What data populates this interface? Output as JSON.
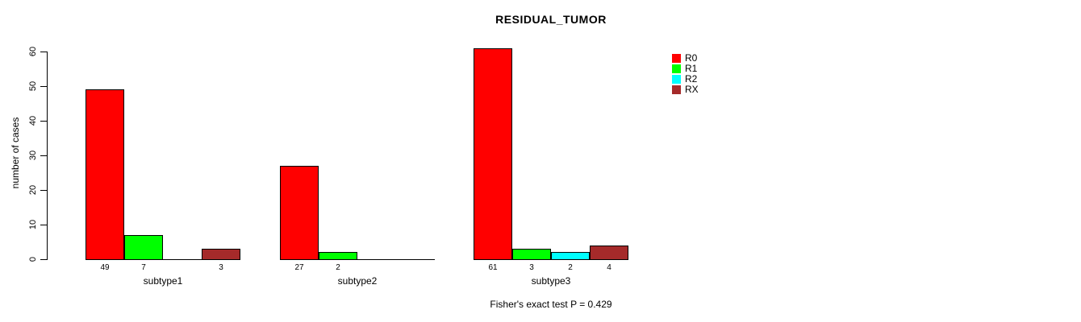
{
  "chart_data": {
    "type": "bar",
    "title": "RESIDUAL_TUMOR",
    "ylabel": "number of cases",
    "xlabel": "",
    "ylim": [
      0,
      60
    ],
    "yticks": [
      0,
      10,
      20,
      30,
      40,
      50,
      60
    ],
    "grid": false,
    "legend_position": "right",
    "categories": [
      "subtype1",
      "subtype2",
      "subtype3"
    ],
    "series": [
      {
        "name": "R0",
        "color": "#ff0000",
        "values": [
          49,
          27,
          61
        ]
      },
      {
        "name": "R1",
        "color": "#00ff00",
        "values": [
          7,
          2,
          3
        ]
      },
      {
        "name": "R2",
        "color": "#00ffff",
        "values": [
          0,
          0,
          2
        ]
      },
      {
        "name": "RX",
        "color": "#a52a2a",
        "values": [
          3,
          0,
          4
        ]
      }
    ],
    "bar_value_label_rule": "value shown under bar only when value > 0",
    "annotation": "Fisher's exact test P = 0.429",
    "text_color": "#000000",
    "background_color": "#ffffff"
  }
}
